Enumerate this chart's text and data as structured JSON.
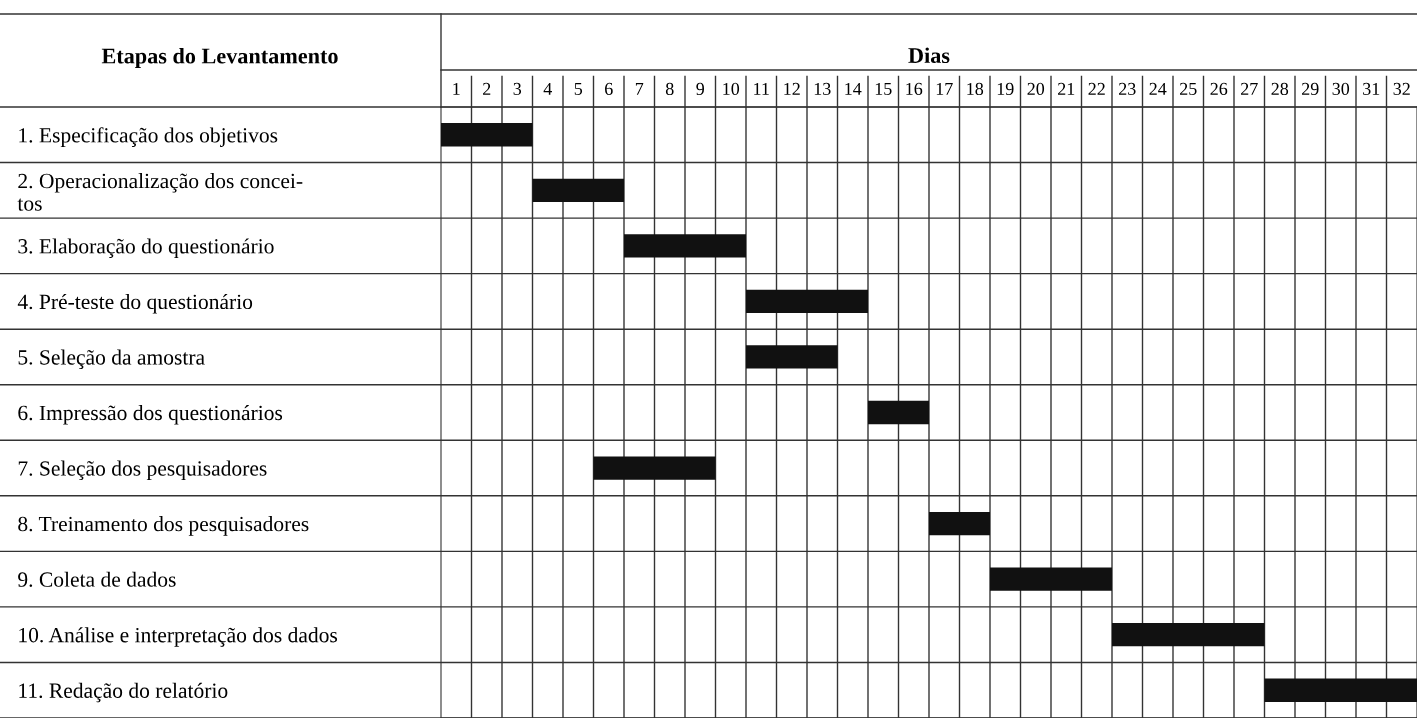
{
  "chart_data": {
    "type": "bar",
    "orientation": "horizontal",
    "xlabel": "Dias",
    "ylabel": "Etapas do Levantamento",
    "categories": [
      "1. Especificação dos objetivos",
      "2. Operacionalização dos concei-\ntos",
      "3. Elaboração do questionário",
      "4. Pré-teste do questionário",
      "5. Seleção da amostra",
      "6. Impressão dos questionários",
      "7. Seleção dos pesquisadores",
      "8. Treinamento dos pesquisadores",
      "9. Coleta de dados",
      "10. Análise e interpretação dos dados",
      "11. Redação do relatório"
    ],
    "base": [
      0,
      3,
      6,
      10,
      10,
      14,
      5,
      16,
      18,
      22,
      27
    ],
    "values": [
      3,
      3,
      4,
      4,
      3,
      2,
      4,
      2,
      4,
      5,
      5
    ],
    "color": "#111111",
    "xlim": [
      0,
      32
    ],
    "xticks": [
      {
        "value": 0.5,
        "label": "1"
      },
      {
        "value": 1.5,
        "label": "2"
      },
      {
        "value": 2.5,
        "label": "3"
      },
      {
        "value": 3.5,
        "label": "4"
      },
      {
        "value": 4.5,
        "label": "5"
      },
      {
        "value": 5.5,
        "label": "6"
      },
      {
        "value": 6.5,
        "label": "7"
      },
      {
        "value": 7.5,
        "label": "8"
      },
      {
        "value": 8.5,
        "label": "9"
      },
      {
        "value": 9.5,
        "label": "10"
      },
      {
        "value": 10.5,
        "label": "11"
      },
      {
        "value": 11.5,
        "label": "12"
      },
      {
        "value": 12.5,
        "label": "13"
      },
      {
        "value": 13.5,
        "label": "14"
      },
      {
        "value": 14.5,
        "label": "15"
      },
      {
        "value": 15.5,
        "label": "16"
      },
      {
        "value": 16.5,
        "label": "17"
      },
      {
        "value": 17.5,
        "label": "18"
      },
      {
        "value": 18.5,
        "label": "19"
      },
      {
        "value": 19.5,
        "label": "20"
      },
      {
        "value": 20.5,
        "label": "21"
      },
      {
        "value": 21.5,
        "label": "22"
      },
      {
        "value": 22.5,
        "label": "23"
      },
      {
        "value": 23.5,
        "label": "24"
      },
      {
        "value": 24.5,
        "label": "25"
      },
      {
        "value": 25.5,
        "label": "26"
      },
      {
        "value": 26.5,
        "label": "27"
      },
      {
        "value": 27.5,
        "label": "28"
      },
      {
        "value": 28.5,
        "label": "29"
      },
      {
        "value": 29.5,
        "label": "30"
      },
      {
        "value": 30.5,
        "label": "31"
      },
      {
        "value": 31.5,
        "label": "32"
      }
    ],
    "grid": true
  }
}
